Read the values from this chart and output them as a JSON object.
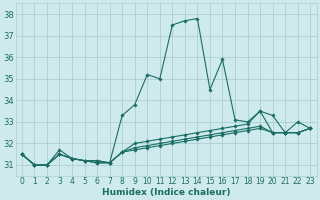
{
  "xlabel": "Humidex (Indice chaleur)",
  "background_color": "#ceeaec",
  "grid_color": "#aacfd2",
  "line_color": "#1a6e65",
  "xlim": [
    -0.5,
    23.5
  ],
  "ylim": [
    30.5,
    38.5
  ],
  "yticks": [
    31,
    32,
    33,
    34,
    35,
    36,
    37,
    38
  ],
  "xticks": [
    0,
    1,
    2,
    3,
    4,
    5,
    6,
    7,
    8,
    9,
    10,
    11,
    12,
    13,
    14,
    15,
    16,
    17,
    18,
    19,
    20,
    21,
    22,
    23
  ],
  "series": [
    [
      31.5,
      31.0,
      31.0,
      31.7,
      31.3,
      31.2,
      31.1,
      31.1,
      33.3,
      33.8,
      35.2,
      35.0,
      37.5,
      37.7,
      37.8,
      34.5,
      35.9,
      33.1,
      33.0,
      33.5,
      32.5,
      32.5,
      33.0,
      32.7
    ],
    [
      31.5,
      31.0,
      31.0,
      31.5,
      31.3,
      31.2,
      31.2,
      31.1,
      31.6,
      32.0,
      32.1,
      32.2,
      32.3,
      32.4,
      32.5,
      32.6,
      32.7,
      32.8,
      32.9,
      33.5,
      33.3,
      32.5,
      32.5,
      32.7
    ],
    [
      31.5,
      31.0,
      31.0,
      31.5,
      31.3,
      31.2,
      31.2,
      31.1,
      31.6,
      31.8,
      31.9,
      32.0,
      32.1,
      32.2,
      32.3,
      32.4,
      32.5,
      32.6,
      32.7,
      32.8,
      32.5,
      32.5,
      32.5,
      32.7
    ],
    [
      31.5,
      31.0,
      31.0,
      31.5,
      31.3,
      31.2,
      31.1,
      31.1,
      31.6,
      31.7,
      31.8,
      31.9,
      32.0,
      32.1,
      32.2,
      32.3,
      32.4,
      32.5,
      32.6,
      32.7,
      32.5,
      32.5,
      32.5,
      32.7
    ]
  ]
}
